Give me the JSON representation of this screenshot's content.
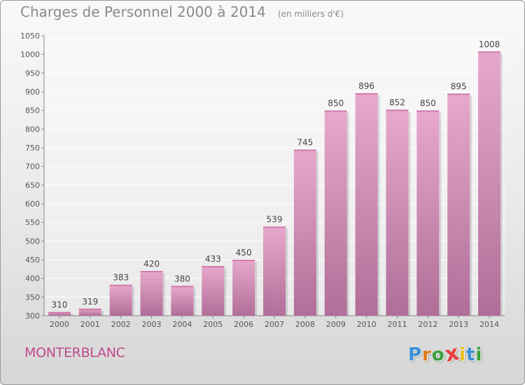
{
  "header": {
    "title": "Charges de Personnel 2000 à 2014",
    "subtitle": "(en milliers d'€)"
  },
  "footer": {
    "commune": "MONTERBLANC",
    "logo_letters": [
      "P",
      "r",
      "o",
      "x",
      "i",
      "t",
      "i"
    ]
  },
  "colors": {
    "bar_top": "#e8a8cc",
    "bar_bottom": "#b06e98",
    "commune_text": "#c04a8c",
    "logo": [
      "#3a8fd8",
      "#e07a1a",
      "#3aa03a",
      "#e84040",
      "#f0c020",
      "#3a8fd8",
      "#3aa03a"
    ]
  },
  "chart_data": {
    "type": "bar",
    "categories": [
      "2000",
      "2001",
      "2002",
      "2003",
      "2004",
      "2005",
      "2006",
      "2007",
      "2008",
      "2009",
      "2010",
      "2011",
      "2012",
      "2013",
      "2014"
    ],
    "values": [
      310,
      319,
      383,
      420,
      380,
      433,
      450,
      539,
      745,
      850,
      896,
      852,
      850,
      895,
      1008
    ],
    "ylim": [
      300,
      1050
    ],
    "yticks": [
      300,
      350,
      400,
      450,
      500,
      550,
      600,
      650,
      700,
      750,
      800,
      850,
      900,
      950,
      1000,
      1050
    ],
    "grid": "horizontal",
    "data_labels": true
  }
}
